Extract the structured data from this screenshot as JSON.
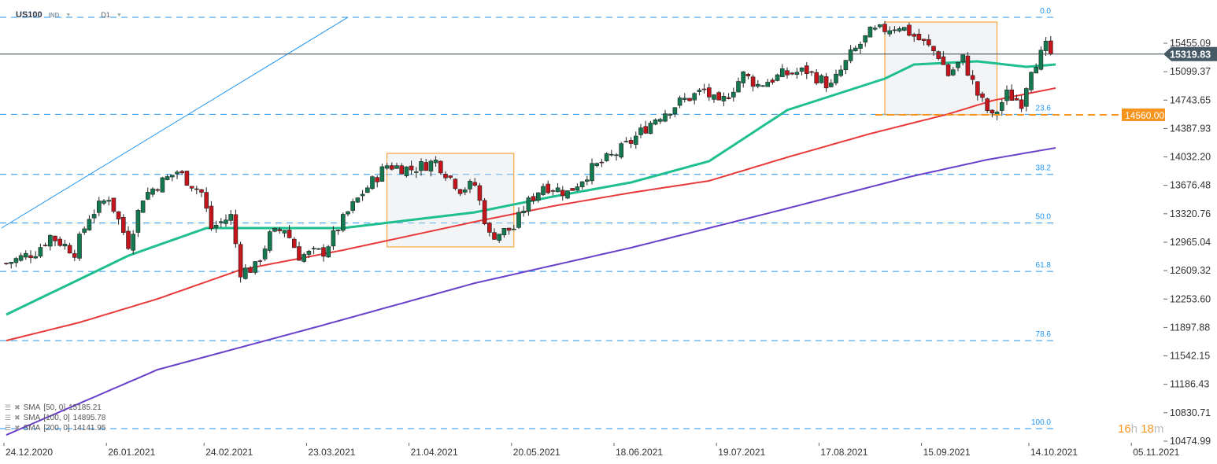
{
  "header": {
    "symbol": "US100",
    "type": "IND",
    "timeframe": "D1"
  },
  "price_axis": {
    "labels": [
      "15455.09",
      "15099.37",
      "14743.65",
      "14387.93",
      "14032.20",
      "13676.48",
      "13320.76",
      "12965.04",
      "12609.32",
      "12253.60",
      "11897.88",
      "11542.15",
      "11186.43",
      "10830.71",
      "10474.99"
    ],
    "current_price": "15319.83",
    "current_value": 15319.83,
    "level_label": "14560.00",
    "level_value": 14560.0
  },
  "date_axis": {
    "labels": [
      "24.12.2020",
      "26.01.2021",
      "24.02.2021",
      "23.03.2021",
      "21.04.2021",
      "20.05.2021",
      "18.06.2021",
      "19.07.2021",
      "17.08.2021",
      "15.09.2021",
      "14.10.2021",
      "05.11.2021"
    ],
    "indices": [
      0,
      21,
      41,
      62,
      83,
      104,
      125,
      146,
      167,
      188,
      210,
      231
    ]
  },
  "countdown": {
    "hours": "16",
    "h": "h",
    "minutes": "18",
    "m": "m"
  },
  "legend": [
    {
      "label": "SMA",
      "params": "[50,  0]",
      "value": "15185.21"
    },
    {
      "label": "SMA",
      "params": "[100,  0]",
      "value": "14895.78"
    },
    {
      "label": "SMA",
      "params": "[200,  0]",
      "value": "14141.95"
    }
  ],
  "colors": {
    "up": "#137a4f",
    "down": "#c4151c",
    "sma50": "#1fbf8f",
    "sma100": "#e8393a",
    "sma200": "#6a3fc9",
    "fib": "#2196f3",
    "level": "#f7941d",
    "box": "#f7941d"
  },
  "chart_data": {
    "type": "candlestick",
    "ylim": [
      10474.99,
      15455.09
    ],
    "close_keypoints": [
      [
        0,
        12699
      ],
      [
        6,
        12847
      ],
      [
        9,
        13044
      ],
      [
        14,
        12847
      ],
      [
        17,
        13290
      ],
      [
        21,
        13536
      ],
      [
        25,
        12945
      ],
      [
        28,
        13536
      ],
      [
        31,
        13683
      ],
      [
        35,
        13851
      ],
      [
        40,
        13585
      ],
      [
        42,
        13142
      ],
      [
        46,
        13290
      ],
      [
        48,
        12601
      ],
      [
        51,
        12650
      ],
      [
        54,
        13044
      ],
      [
        57,
        13142
      ],
      [
        60,
        12797
      ],
      [
        65,
        12847
      ],
      [
        70,
        13339
      ],
      [
        73,
        13585
      ],
      [
        78,
        13929
      ],
      [
        83,
        13880
      ],
      [
        88,
        13979
      ],
      [
        93,
        13634
      ],
      [
        96,
        13683
      ],
      [
        99,
        13044
      ],
      [
        104,
        13142
      ],
      [
        106,
        13388
      ],
      [
        110,
        13683
      ],
      [
        115,
        13585
      ],
      [
        120,
        13880
      ],
      [
        125,
        14077
      ],
      [
        128,
        14225
      ],
      [
        133,
        14520
      ],
      [
        138,
        14717
      ],
      [
        143,
        14864
      ],
      [
        146,
        14668
      ],
      [
        151,
        15061
      ],
      [
        154,
        14933
      ],
      [
        159,
        15061
      ],
      [
        164,
        15110
      ],
      [
        169,
        14914
      ],
      [
        173,
        15307
      ],
      [
        177,
        15583
      ],
      [
        183,
        15681
      ],
      [
        188,
        15455
      ],
      [
        191,
        15307
      ],
      [
        193,
        15061
      ],
      [
        196,
        15258
      ],
      [
        199,
        14815
      ],
      [
        202,
        14520
      ],
      [
        205,
        14815
      ],
      [
        208,
        14717
      ],
      [
        210,
        15160
      ],
      [
        212,
        15307
      ],
      [
        213,
        15406
      ],
      [
        214,
        15319.83
      ]
    ],
    "sma": [
      {
        "name": "SMA 50",
        "points": [
          [
            0,
            12059
          ],
          [
            25,
            12797
          ],
          [
            41,
            13142
          ],
          [
            69,
            13142
          ],
          [
            96,
            13339
          ],
          [
            112,
            13536
          ],
          [
            128,
            13713
          ],
          [
            144,
            13979
          ],
          [
            160,
            14618
          ],
          [
            170,
            14815
          ],
          [
            180,
            15012
          ],
          [
            186,
            15189
          ],
          [
            199,
            15229
          ],
          [
            209,
            15160
          ],
          [
            215,
            15189
          ]
        ]
      },
      {
        "name": "SMA 100",
        "points": [
          [
            0,
            11734
          ],
          [
            15,
            11961
          ],
          [
            31,
            12256
          ],
          [
            48,
            12620
          ],
          [
            69,
            12866
          ],
          [
            96,
            13221
          ],
          [
            112,
            13417
          ],
          [
            128,
            13585
          ],
          [
            144,
            13733
          ],
          [
            160,
            14028
          ],
          [
            177,
            14323
          ],
          [
            193,
            14569
          ],
          [
            202,
            14737
          ],
          [
            215,
            14894
          ]
        ]
      },
      {
        "name": "SMA 200",
        "points": [
          [
            0,
            10553
          ],
          [
            31,
            11370
          ],
          [
            64,
            11912
          ],
          [
            96,
            12453
          ],
          [
            128,
            12896
          ],
          [
            160,
            13388
          ],
          [
            185,
            13782
          ],
          [
            201,
            13998
          ],
          [
            215,
            14146
          ]
        ]
      }
    ],
    "fibonacci": [
      {
        "label": "0.0",
        "price": 15780
      },
      {
        "label": "23.6",
        "price": 14565
      },
      {
        "label": "38.2",
        "price": 13814
      },
      {
        "label": "50.0",
        "price": 13206
      },
      {
        "label": "61.8",
        "price": 12599
      },
      {
        "label": "78.6",
        "price": 11733
      },
      {
        "label": "100.0",
        "price": 10632
      }
    ],
    "boxes": [
      {
        "from": 78,
        "to": 104,
        "high": 14077,
        "low": 12906
      },
      {
        "from": 180,
        "to": 203,
        "high": 15721,
        "low": 14560
      }
    ],
    "trendline": [
      [
        -1,
        13142
      ],
      [
        70,
        15780
      ]
    ]
  }
}
